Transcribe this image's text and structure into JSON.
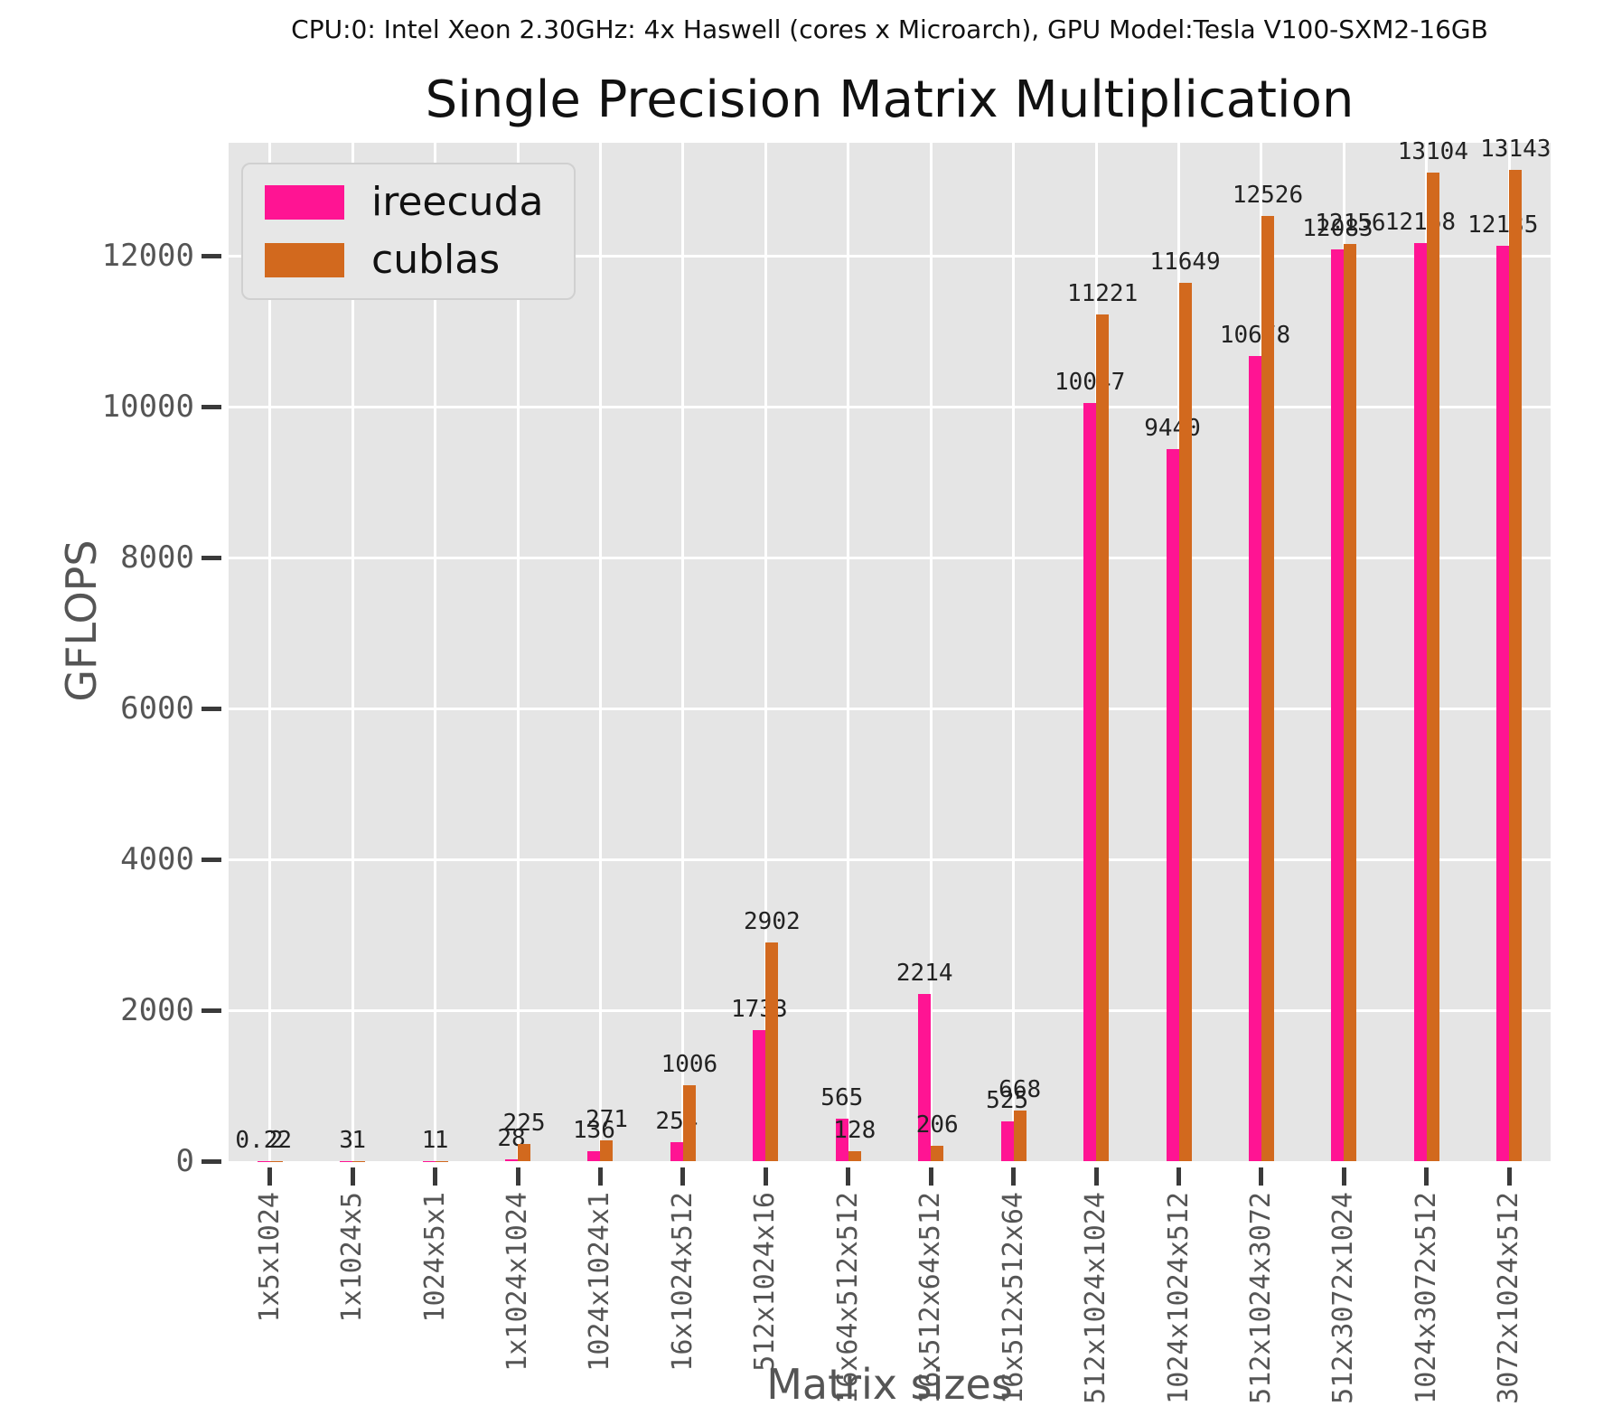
{
  "suptitle": "CPU:0: Intel Xeon 2.30GHz: 4x Haswell (cores x Microarch), GPU Model:Tesla V100-SXM2-16GB",
  "chart_data": {
    "type": "bar",
    "title": "Single Precision Matrix Multiplication",
    "xlabel": "Matrix sizes",
    "ylabel": "GFLOPS",
    "grid": true,
    "legend_position": "upper left",
    "background_color": "#e5e5e5",
    "gridline_color": "#ffffff",
    "ylim": [
      0,
      13500
    ],
    "yticks": [
      0,
      2000,
      4000,
      6000,
      8000,
      10000,
      12000
    ],
    "ytick_labels": [
      "0",
      "2000",
      "4000",
      "6000",
      "8000",
      "10000",
      "12000"
    ],
    "categories": [
      "1x5x1024",
      "1x1024x5",
      "1024x5x1",
      "1x1024x1024",
      "1024x1024x1",
      "16x1024x512",
      "512x1024x16",
      "16x64x512x512",
      "16x512x64x512",
      "16x512x512x64",
      "512x1024x1024",
      "1024x1024x512",
      "512x1024x3072",
      "512x3072x1024",
      "1024x3072x512",
      "3072x1024x512"
    ],
    "series": [
      {
        "name": "ireecuda",
        "color": "#ff1493",
        "values": [
          0.22,
          3,
          1,
          28,
          136,
          254,
          1733,
          565,
          2214,
          525,
          10047,
          9440,
          10678,
          12083,
          12168,
          12135
        ],
        "value_labels": [
          "0.22",
          "3",
          "1",
          "28",
          "136",
          "254",
          "1733",
          "565",
          "2214",
          "525",
          "10047",
          "9440",
          "10678",
          "12083",
          "12168",
          "12135"
        ]
      },
      {
        "name": "cublas",
        "color": "#d2691e",
        "values": [
          2,
          1,
          1,
          225,
          271,
          1006,
          2902,
          128,
          206,
          668,
          11221,
          11649,
          12526,
          12156,
          13104,
          13143
        ],
        "value_labels": [
          "2",
          "1",
          "1",
          "225",
          "271",
          "1006",
          "2902",
          "128",
          "206",
          "668",
          "11221",
          "11649",
          "12526",
          "12156",
          "13104",
          "13143"
        ]
      }
    ]
  }
}
